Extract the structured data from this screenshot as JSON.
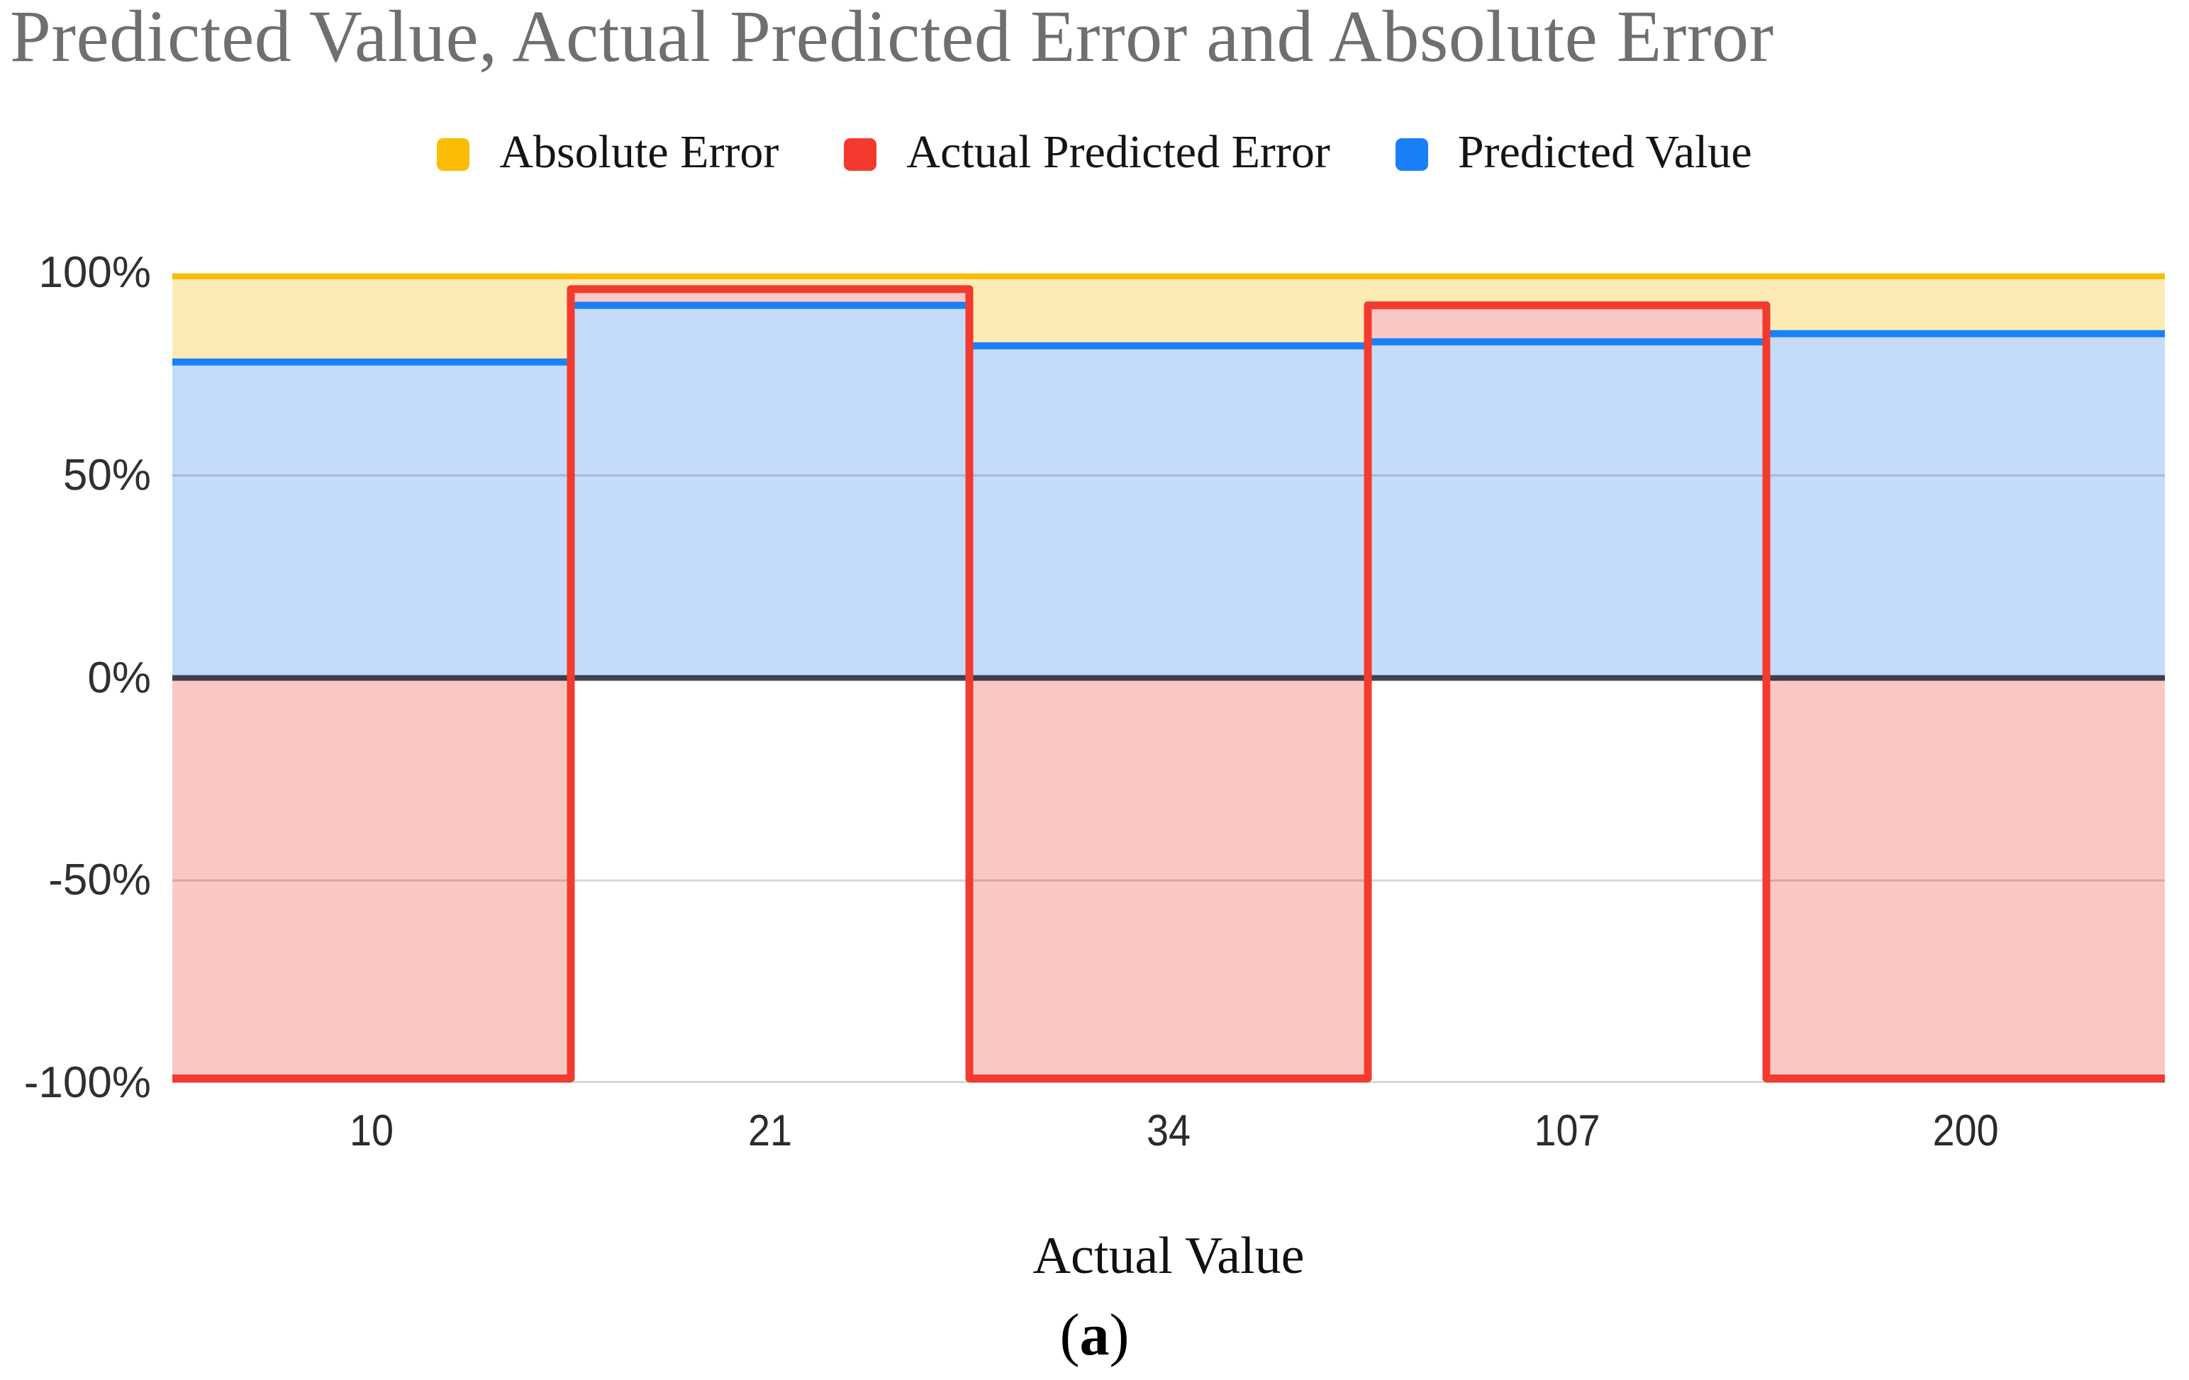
{
  "chart": {
    "title": "Predicted Value, Actual Predicted Error and Absolute Error",
    "xlabel": "Actual Value"
  },
  "caption": {
    "open": "(",
    "letter": "a",
    "close": ")"
  },
  "colors": {
    "background": "#FFFFFF",
    "title_text": "#6F6F6F",
    "tick_text": "#303030",
    "gridline": "rgba(0,0,0,0.15)",
    "zero_line": "rgba(22,24,38,0.8)",
    "absolute_error": "#FBBC04",
    "actual_predicted_error": "#F23B2E",
    "predicted_value": "#1A80F8"
  },
  "chart_data": {
    "type": "stepped-area",
    "title": "Predicted Value, Actual Predicted Error and Absolute Error",
    "xlabel": "Actual Value",
    "ylabel": "",
    "categories": [
      "10",
      "21",
      "34",
      "107",
      "200"
    ],
    "series": [
      {
        "name": "Absolute Error",
        "color": "#FBBC04",
        "fill": "#FCEBB4",
        "line_width": 8,
        "values": [
          100,
          100,
          100,
          100,
          100
        ]
      },
      {
        "name": "Actual Predicted Error",
        "color": "#F23B2E",
        "fill": "#FAC8C4",
        "line_width": 11,
        "values": [
          -100,
          96,
          -100,
          92,
          -100
        ]
      },
      {
        "name": "Predicted Value",
        "color": "#1A80F8",
        "fill": "#C5DBFA",
        "line_width": 10,
        "values": [
          78,
          92,
          82,
          83,
          85
        ]
      }
    ],
    "ylim": [
      -100,
      100
    ],
    "yticks": [
      {
        "label": "100%",
        "value": 100
      },
      {
        "label": "50%",
        "value": 50
      },
      {
        "label": "0%",
        "value": 0
      },
      {
        "label": "-50%",
        "value": -50
      },
      {
        "label": "-100%",
        "value": -100
      }
    ],
    "legend_position": "top",
    "grid": true,
    "line_draw_order": [
      0,
      2,
      1
    ]
  }
}
